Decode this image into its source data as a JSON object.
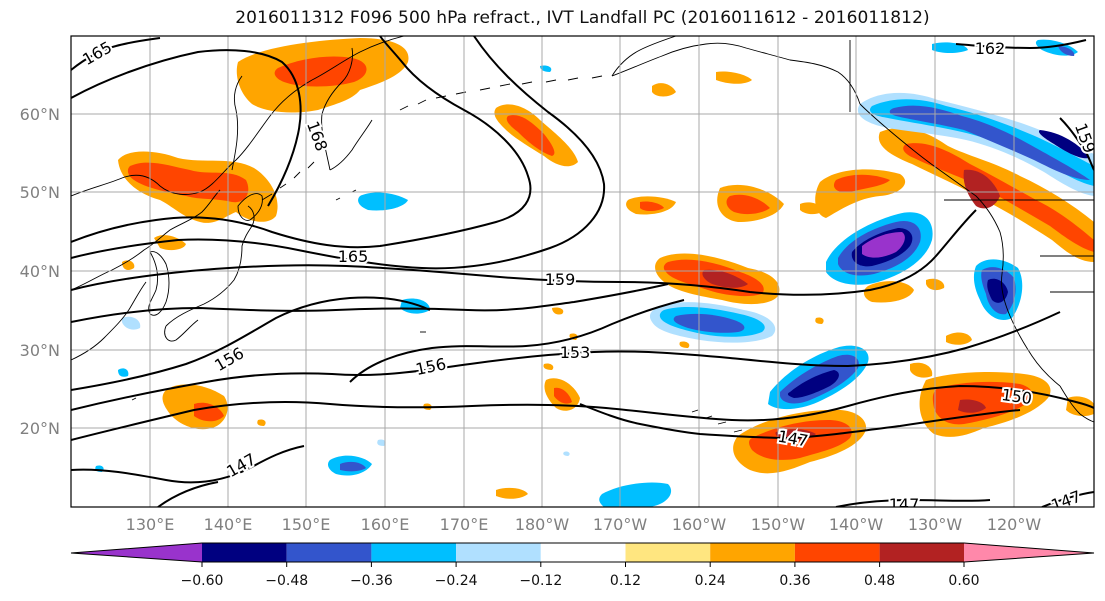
{
  "title": "2016011312 F096 500 hPa refract., IVT Landfall PC (2016011612 - 2016011812)",
  "latitude_labels": [
    "60°N",
    "50°N",
    "40°N",
    "30°N",
    "20°N"
  ],
  "longitude_labels": [
    "130°E",
    "140°E",
    "150°E",
    "160°E",
    "170°E",
    "180°W",
    "170°W",
    "160°W",
    "150°W",
    "140°W",
    "130°W",
    "120°W"
  ],
  "contour_labels": [
    "165",
    "168",
    "165",
    "159",
    "156",
    "156",
    "153",
    "150",
    "147",
    "147",
    "147",
    "162",
    "159",
    "147"
  ],
  "colorbar": {
    "colors": [
      "#9933cc",
      "#000080",
      "#3355cc",
      "#00bfff",
      "#b0e0ff",
      "#ffffff",
      "#ffe680",
      "#ffa500",
      "#ff4500",
      "#b22222",
      "#ff88aa"
    ],
    "tick_labels": [
      "−0.60",
      "−0.48",
      "−0.36",
      "−0.24",
      "−0.12",
      "0.12",
      "0.24",
      "0.36",
      "0.48",
      "0.60"
    ]
  }
}
